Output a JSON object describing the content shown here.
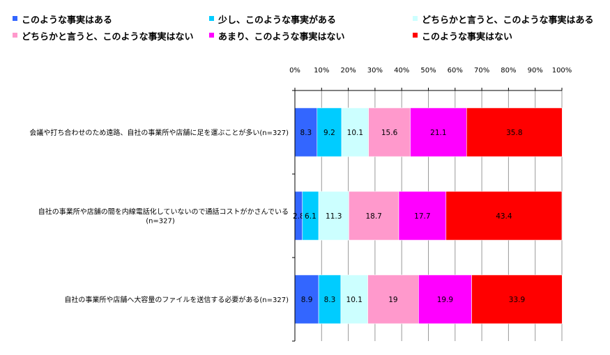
{
  "chart_data": {
    "type": "bar",
    "orientation": "horizontal",
    "stacked": true,
    "percent": true,
    "xlim": [
      0,
      100
    ],
    "ticks": [
      "0%",
      "10%",
      "20%",
      "30%",
      "40%",
      "50%",
      "60%",
      "70%",
      "80%",
      "90%",
      "100%"
    ],
    "categories": [
      [
        "会議や打ち合わせのため遠路、自社の事業所や店舗に足を運ぶことが多い(n=327)"
      ],
      [
        "自社の事業所や店舗の間を内線電話化していないので通話コストがかさんでいる",
        "(n=327)"
      ],
      [
        "自社の事業所や店舗へ大容量のファイルを送信する必要がある(n=327)"
      ]
    ],
    "series": [
      {
        "name": "このような事実はある",
        "color": "#3366FF",
        "values": [
          8.3,
          2.8,
          8.9
        ]
      },
      {
        "name": "少し、このような事実がある",
        "color": "#00CCFF",
        "values": [
          9.2,
          6.1,
          8.3
        ]
      },
      {
        "name": "どちらかと言うと、このような事実はある",
        "color": "#CCFFFF",
        "values": [
          10.1,
          11.3,
          10.1
        ]
      },
      {
        "name": "どちらかと言うと、このような事実はない",
        "color": "#FF99CC",
        "values": [
          15.6,
          18.7,
          19
        ]
      },
      {
        "name": "あまり、このような事実はない",
        "color": "#FF00FF",
        "values": [
          21.1,
          17.7,
          19.9
        ]
      },
      {
        "name": "このような事実はない",
        "color": "#FF0000",
        "values": [
          35.8,
          43.4,
          33.9
        ]
      }
    ],
    "legend": "top",
    "grid": true
  }
}
